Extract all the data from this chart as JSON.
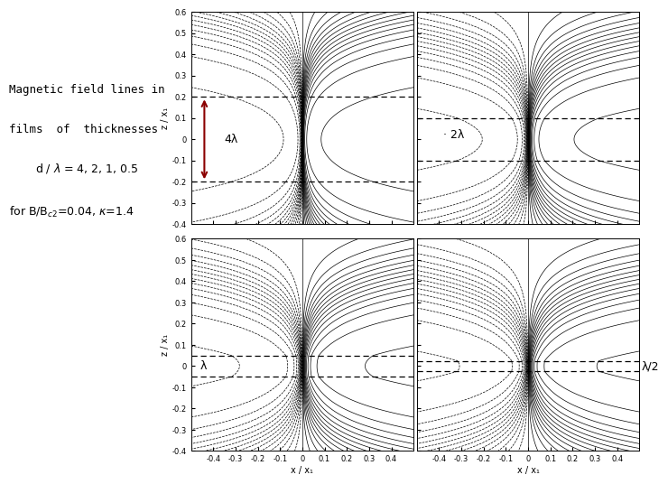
{
  "title_lines": [
    "Magnetic field lines in",
    "films  of  thicknesses",
    "  d / λ = 4, 2, 1, 0.5",
    "for B/B⁣₂=0.04, κ=1.4"
  ],
  "xlim": [
    -0.5,
    0.5
  ],
  "zlim": [
    -0.4,
    0.6
  ],
  "xlabel": "x / x₁",
  "ylabel": "z / x₁",
  "cases": [
    {
      "d_over_lambda": 4.0,
      "label": "4λ",
      "half_d": 0.2
    },
    {
      "d_over_lambda": 2.0,
      "label": "2λ",
      "half_d": 0.1
    },
    {
      "d_over_lambda": 1.0,
      "label": "λ",
      "half_d": 0.05
    },
    {
      "d_over_lambda": 0.5,
      "label": "λ/2",
      "half_d": 0.025
    }
  ],
  "arrow_color": "#8B0000",
  "line_color": "black",
  "background": "white",
  "n_lines": 30
}
